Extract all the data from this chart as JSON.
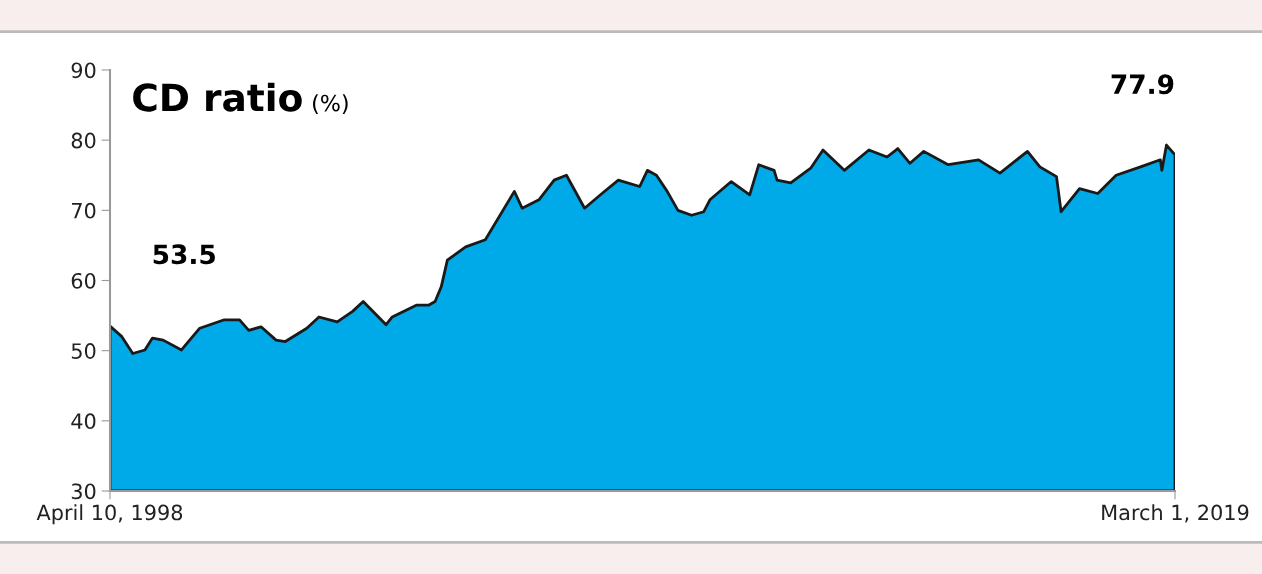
{
  "chart_data": {
    "type": "area",
    "title": "CD ratio",
    "ylabel": "(%)",
    "x": [
      "1998-04-10",
      "1998-07-04",
      "1998-09-20",
      "1998-12-16",
      "1999-02-08",
      "1999-04-26",
      "1999-09-04",
      "2000-01-13",
      "2000-07-07",
      "2000-10-24",
      "2000-12-29",
      "2001-03-27",
      "2001-07-13",
      "2001-09-17",
      "2002-02-18",
      "2002-05-16",
      "2002-09-24",
      "2003-01-12",
      "2003-03-29",
      "2003-09-09",
      "2003-10-23",
      "2004-04-16",
      "2004-07-12",
      "2004-08-25",
      "2004-10-08",
      "2004-11-21",
      "2005-04-01",
      "2005-08-20",
      "2006-03-16",
      "2006-05-11",
      "2006-09-08",
      "2006-12-26",
      "2007-03-24",
      "2007-08-01",
      "2007-12-10",
      "2008-03-30",
      "2008-08-30",
      "2008-10-24",
      "2008-12-28",
      "2009-03-15",
      "2009-05-31",
      "2009-09-06",
      "2009-12-02",
      "2010-01-15",
      "2010-06-17",
      "2010-10-27",
      "2010-12-31",
      "2011-04-20",
      "2011-05-11",
      "2011-08-17",
      "2012-01-07",
      "2012-04-04",
      "2012-09-04",
      "2013-02-27",
      "2013-07-07",
      "2013-09-22",
      "2013-12-18",
      "2014-03-27",
      "2014-09-18",
      "2015-04-24",
      "2015-09-24",
      "2015-12-21",
      "2016-04-08",
      "2016-07-06",
      "2016-11-02",
      "2016-12-05",
      "2017-04-16",
      "2017-08-25",
      "2018-01-03",
      "2018-06-27",
      "2018-11-16",
      "2018-11-27",
      "2018-12-30",
      "2019-03-01"
    ],
    "series": [
      {
        "color": "#00a9e8",
        "values": [
          53.5,
          52.0,
          49.6,
          50.1,
          51.8,
          51.5,
          50.1,
          53.2,
          54.4,
          54.4,
          52.9,
          53.4,
          51.5,
          51.3,
          53.2,
          54.8,
          54.1,
          55.6,
          57.0,
          53.7,
          54.8,
          56.5,
          56.5,
          57.0,
          59.1,
          62.9,
          64.8,
          65.8,
          72.7,
          70.3,
          71.5,
          74.3,
          75.0,
          70.3,
          72.5,
          74.3,
          73.4,
          75.7,
          75.0,
          72.7,
          70.0,
          69.3,
          69.8,
          71.5,
          74.1,
          72.2,
          76.5,
          75.7,
          74.3,
          73.9,
          76.0,
          78.6,
          75.7,
          78.6,
          77.6,
          78.8,
          76.7,
          78.4,
          76.5,
          77.2,
          75.3,
          76.7,
          78.4,
          76.2,
          74.8,
          69.8,
          73.1,
          72.4,
          75.0,
          76.2,
          77.2,
          75.7,
          79.3,
          77.9
        ]
      }
    ],
    "xlim": [
      "1998-04-10",
      "2019-03-01"
    ],
    "xticks": [
      {
        "value": "1998-04-10",
        "label": "April 10, 1998"
      },
      {
        "value": "2019-03-01",
        "label": "March 1, 2019"
      }
    ],
    "ylim": [
      30,
      90
    ],
    "yticks": [
      30,
      40,
      50,
      60,
      70,
      80,
      90
    ],
    "annotations": [
      {
        "text": "53.5",
        "x": "1998-04-10",
        "y": 53.5
      },
      {
        "text": "77.9",
        "x": "2019-03-01",
        "y": 77.9
      }
    ],
    "grid": false,
    "legend": false
  }
}
